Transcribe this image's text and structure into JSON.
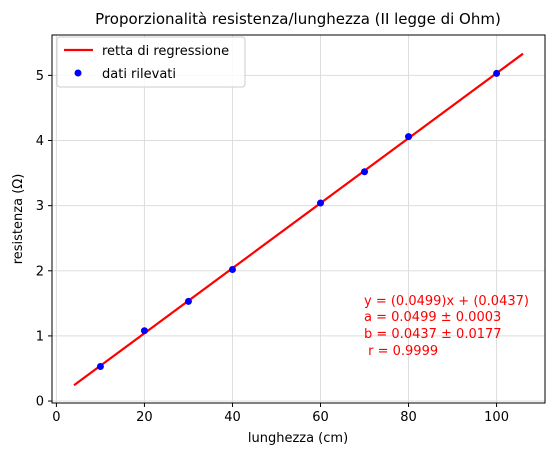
{
  "chart_data": {
    "type": "scatter",
    "title": "Proporzionalità resistenza/lunghezza (II legge di Ohm)",
    "xlabel": "lunghezza (cm)",
    "ylabel": "resistenza (Ω)",
    "xlim": [
      -1,
      111
    ],
    "ylim": [
      -0.03,
      5.62
    ],
    "x_ticks": [
      0,
      20,
      40,
      60,
      80,
      100
    ],
    "y_ticks": [
      0,
      1,
      2,
      3,
      4,
      5
    ],
    "grid": true,
    "legend_position": "top-left",
    "series": [
      {
        "name": "retta di regressione",
        "kind": "line",
        "color": "#ff0000",
        "x": [
          4,
          106
        ],
        "y": [
          0.2433,
          5.3331
        ]
      },
      {
        "name": "dati rilevati",
        "kind": "scatter",
        "color": "#0000ff",
        "x": [
          10,
          20,
          30,
          40,
          60,
          70,
          80,
          100
        ],
        "y": [
          0.53,
          1.08,
          1.53,
          2.02,
          3.04,
          3.52,
          4.06,
          5.03
        ]
      }
    ],
    "annotation": {
      "color": "#ff0000",
      "lines": [
        "y = (0.0499)x + (0.0437)",
        "a = 0.0499 ± 0.0003",
        "b = 0.0437 ± 0.0177",
        " r = 0.9999"
      ]
    }
  }
}
